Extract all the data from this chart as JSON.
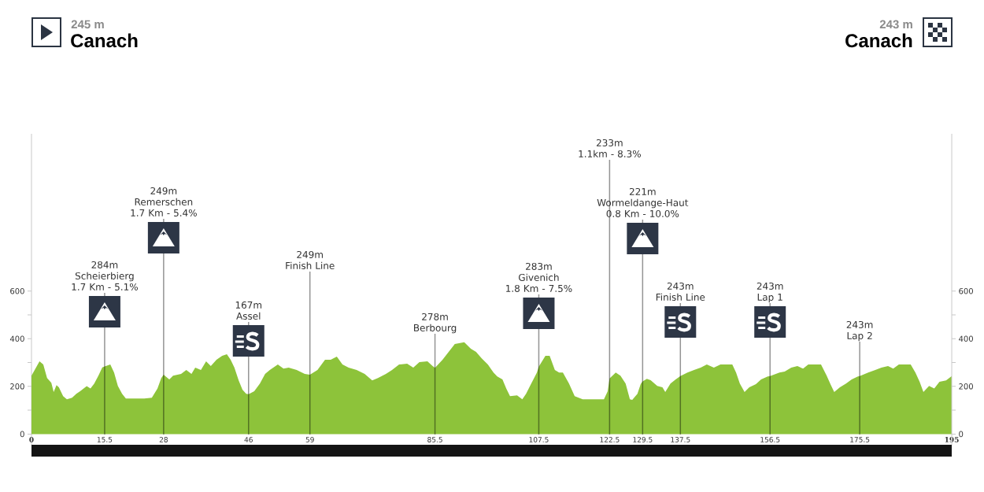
{
  "chart_data": {
    "type": "area",
    "color": "#8dc33a",
    "x": [
      0,
      1.7,
      2.5,
      3.3,
      4.2,
      4.7,
      5.3,
      5.8,
      6.7,
      7.5,
      8.6,
      9.5,
      10.3,
      11.7,
      12.5,
      13.3,
      14.2,
      15,
      15.5,
      16.7,
      17.5,
      18.3,
      19.2,
      20,
      22.2,
      23.9,
      25.5,
      26.7,
      27.5,
      28,
      29.2,
      30,
      31.7,
      32.8,
      33.9,
      34.7,
      35.9,
      37,
      38,
      39.2,
      40.4,
      41.4,
      42.2,
      43,
      43.9,
      44.7,
      45.5,
      46,
      47.2,
      48.4,
      49.5,
      50.5,
      52.2,
      53.4,
      54.5,
      56.2,
      57.9,
      59,
      60.6,
      62.2,
      63.4,
      64.7,
      65.9,
      67.2,
      68.9,
      70.6,
      72.2,
      73.4,
      75.1,
      76.4,
      77.9,
      79.6,
      80.9,
      82.2,
      83.9,
      85,
      85.5,
      87.1,
      88.4,
      89.7,
      91.7,
      93.1,
      94.2,
      95.4,
      96.7,
      97.9,
      98.7,
      99.8,
      100.6,
      101.4,
      102.9,
      104,
      104.8,
      105.9,
      107.1,
      107.5,
      108.9,
      109.8,
      110.9,
      111.8,
      112.6,
      113.9,
      115.1,
      116.8,
      118.9,
      121.3,
      122.1,
      122.5,
      123.8,
      124.8,
      125.9,
      126.8,
      127.3,
      128.4,
      129.1,
      129.5,
      130.4,
      131.2,
      132.6,
      133.7,
      134.3,
      135.4,
      136.5,
      137.5,
      139,
      140.4,
      141.8,
      143.1,
      144.6,
      146,
      148.5,
      149.3,
      150.1,
      151.1,
      152.1,
      153.5,
      154.6,
      156,
      156.5,
      158.5,
      159.6,
      161,
      162.3,
      163.5,
      164.6,
      167.3,
      168.5,
      169.3,
      170.1,
      171.3,
      172.6,
      173.8,
      175.1,
      175.5,
      177.3,
      178.8,
      180.1,
      181.5,
      182.6,
      183.8,
      186.3,
      187.3,
      188.2,
      189,
      190.2,
      191.3,
      192.4,
      193.8,
      195
    ],
    "values": [
      245,
      305,
      292,
      235,
      215,
      176,
      205,
      196,
      159,
      146,
      152,
      169,
      180,
      201,
      191,
      212,
      246,
      280,
      284,
      292,
      258,
      202,
      169,
      149,
      149,
      149,
      152,
      191,
      235,
      249,
      229,
      245,
      252,
      269,
      252,
      279,
      269,
      305,
      285,
      312,
      328,
      335,
      312,
      279,
      225,
      186,
      169,
      167,
      180,
      212,
      252,
      269,
      292,
      275,
      279,
      269,
      252,
      249,
      269,
      312,
      312,
      325,
      292,
      279,
      269,
      252,
      225,
      235,
      252,
      269,
      292,
      295,
      279,
      302,
      305,
      285,
      278,
      312,
      345,
      378,
      385,
      358,
      345,
      318,
      292,
      258,
      242,
      229,
      191,
      159,
      162,
      146,
      169,
      212,
      258,
      283,
      328,
      328,
      269,
      258,
      258,
      212,
      159,
      146,
      146,
      146,
      180,
      233,
      258,
      245,
      212,
      146,
      143,
      169,
      210,
      221,
      232,
      226,
      202,
      196,
      176,
      212,
      229,
      243,
      258,
      269,
      279,
      292,
      279,
      292,
      292,
      258,
      212,
      176,
      196,
      209,
      229,
      242,
      243,
      258,
      262,
      279,
      285,
      275,
      292,
      292,
      245,
      209,
      176,
      196,
      212,
      229,
      242,
      243,
      258,
      269,
      279,
      285,
      275,
      292,
      292,
      258,
      219,
      176,
      202,
      191,
      219,
      225,
      243
    ],
    "xlim": [
      0,
      195
    ],
    "xticks": [
      0,
      15.5,
      28,
      46,
      59,
      85.5,
      107.5,
      122.5,
      129.5,
      137.5,
      156.5,
      175.5,
      195
    ],
    "ylim": [
      -45,
      1260
    ],
    "yticks": [
      0,
      {
        "value": 100,
        "label": null
      },
      200,
      {
        "value": 300,
        "label": null
      },
      400,
      {
        "value": 500,
        "label": null
      },
      600
    ],
    "y2lim": [
      -45,
      1260
    ],
    "y2ticks": [
      0,
      {
        "value": 100,
        "label": null
      },
      200,
      {
        "value": 300,
        "label": null
      },
      400,
      {
        "value": 500,
        "label": null
      },
      600
    ],
    "ref_lines": [
      {
        "axis": "x",
        "value": 15.5,
        "label": "284m\nScheierbierg\n1.7 Km - 5.1%"
      },
      {
        "axis": "x",
        "value": 28,
        "label": "249m\nRemerschen\n1.7 Km - 5.4%"
      },
      {
        "axis": "x",
        "value": 46,
        "label": "167m\nAssel"
      },
      {
        "axis": "x",
        "value": 59,
        "label": "249m\nFinish Line"
      },
      {
        "axis": "x",
        "value": 85.5,
        "label": "278m\nBerbourg"
      },
      {
        "axis": "x",
        "value": 107.5,
        "label": "283m\nGivenich\n1.8 Km - 7.5%"
      },
      {
        "axis": "x",
        "value": 122.5,
        "label": "233m\n1.1km - 8.3%"
      },
      {
        "axis": "x",
        "value": 129.5,
        "label": "221m\nWormeldange-Haut\n0.8 Km - 10.0%"
      },
      {
        "axis": "x",
        "value": 137.5,
        "label": "243m\nFinish Line"
      },
      {
        "axis": "x",
        "value": 156.5,
        "label": "243m\nLap 1"
      },
      {
        "axis": "x",
        "value": 175.5,
        "label": "243m\nLap 2"
      }
    ],
    "annotations": [
      "245 m",
      "Canach",
      "243 m",
      "Canach"
    ]
  }
}
